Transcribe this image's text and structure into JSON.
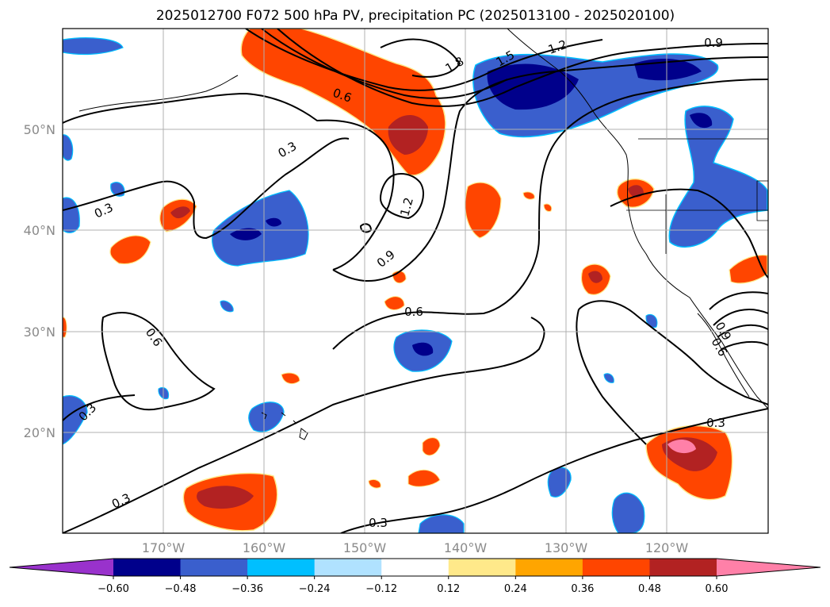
{
  "title": "2025012700 F072 500 hPa PV, precipitation PC (2025013100 - 2025020100)",
  "map": {
    "lat_ticks": [
      "50°N",
      "40°N",
      "30°N",
      "20°N"
    ],
    "lon_ticks": [
      "170°W",
      "160°W",
      "150°W",
      "140°W",
      "130°W",
      "120°W"
    ],
    "grid": true,
    "contour_color": "#000000",
    "contour_labels": [
      "1.8",
      "1.5",
      "1.2",
      "0.9",
      "0.6",
      "0.3",
      "0.3",
      "1.2",
      "0.9",
      "0.6",
      "0.6",
      "0.3",
      "0.3",
      "0.3",
      "0.3",
      "0.9",
      "0.6",
      "0.6"
    ]
  },
  "colorbar": {
    "ticks": [
      "−0.60",
      "−0.48",
      "−0.36",
      "−0.24",
      "−0.12",
      "0.12",
      "0.24",
      "0.36",
      "0.48",
      "0.60"
    ],
    "colors": [
      "#9932cc",
      "#00008b",
      "#3a5fcd",
      "#00bfff",
      "#b0e2ff",
      "#ffffff",
      "#ffe98a",
      "#ffa500",
      "#ff4500",
      "#b22222",
      "#ff80a8"
    ],
    "extend": "both"
  },
  "chart_data": {
    "type": "heatmap",
    "title": "2025012700 F072 500 hPa PV, precipitation PC (2025013100 - 2025020100)",
    "xlabel": "",
    "ylabel": "",
    "x_ticks": [
      "170°W",
      "160°W",
      "150°W",
      "140°W",
      "130°W",
      "120°W"
    ],
    "y_ticks": [
      "50°N",
      "40°N",
      "30°N",
      "20°N"
    ],
    "lon_range": [
      -180,
      -110
    ],
    "lat_range": [
      10,
      60
    ],
    "color_levels": [
      -0.6,
      -0.48,
      -0.36,
      -0.24,
      -0.12,
      0.12,
      0.24,
      0.36,
      0.48,
      0.6
    ],
    "contour_levels": [
      0.3,
      0.6,
      0.9,
      1.2,
      1.5,
      1.8
    ]
  }
}
